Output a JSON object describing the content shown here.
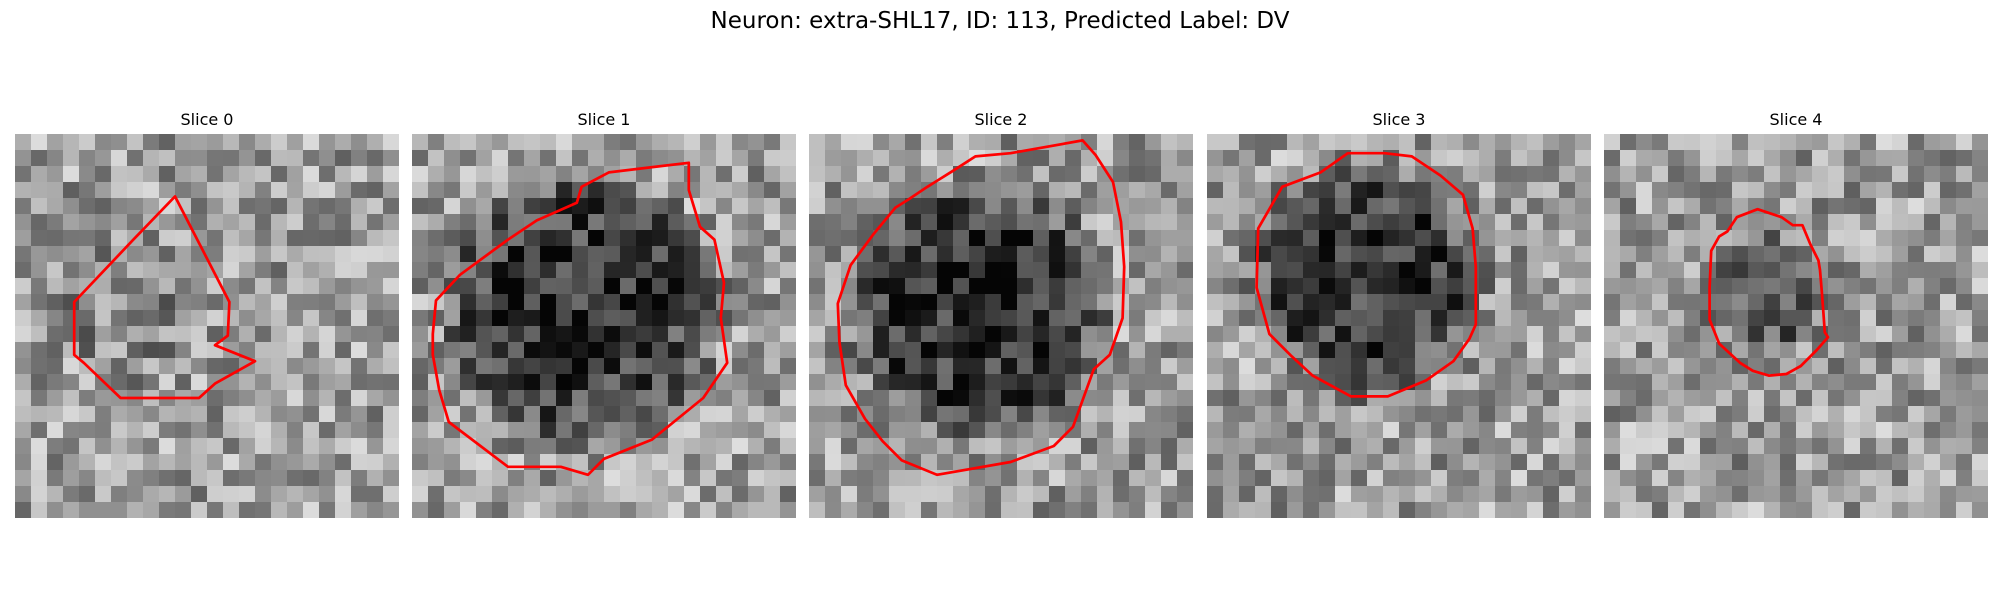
{
  "figure": {
    "title": "Neuron: extra-SHL17, ID: 113, Predicted Label: DV"
  },
  "style": {
    "contour_color": "#ff0000"
  },
  "slices": [
    {
      "title": "Slice 0",
      "contour": [
        [
          10,
          3.9
        ],
        [
          7.4,
          6.6
        ],
        [
          3.7,
          10.5
        ],
        [
          3.7,
          13.8
        ],
        [
          4.3,
          14.3
        ],
        [
          6.6,
          16.5
        ],
        [
          11.5,
          16.5
        ],
        [
          12.5,
          15.6
        ],
        [
          15,
          14.2
        ],
        [
          12.5,
          13.2
        ],
        [
          13.3,
          12.6
        ],
        [
          13.4,
          10.5
        ]
      ]
    },
    {
      "title": "Slice 1",
      "contour": [
        [
          17.3,
          1.8
        ],
        [
          17.3,
          3.5
        ],
        [
          18,
          5.8
        ],
        [
          18.9,
          6.6
        ],
        [
          19.5,
          9.3
        ],
        [
          19.3,
          11.5
        ],
        [
          19.7,
          14.3
        ],
        [
          18.2,
          16.5
        ],
        [
          15,
          19.1
        ],
        [
          12,
          20.3
        ],
        [
          11,
          21.3
        ],
        [
          9.3,
          20.8
        ],
        [
          6,
          20.8
        ],
        [
          2.3,
          18
        ],
        [
          1.7,
          16
        ],
        [
          1.3,
          13.8
        ],
        [
          1.3,
          12.5
        ],
        [
          1.5,
          10.4
        ],
        [
          3,
          8.8
        ],
        [
          6,
          6.6
        ],
        [
          7.8,
          5.4
        ],
        [
          10.3,
          4.3
        ],
        [
          10.6,
          3.3
        ],
        [
          12.3,
          2.4
        ]
      ]
    },
    {
      "title": "Slice 2",
      "contour": [
        [
          17.1,
          0.4
        ],
        [
          17.9,
          1.3
        ],
        [
          19,
          3
        ],
        [
          19.5,
          5.5
        ],
        [
          19.7,
          8.3
        ],
        [
          19.6,
          11.5
        ],
        [
          18.8,
          13.8
        ],
        [
          17.8,
          14.7
        ],
        [
          16.5,
          18.3
        ],
        [
          15.3,
          19.5
        ],
        [
          12.6,
          20.5
        ],
        [
          8,
          21.3
        ],
        [
          5.8,
          20.4
        ],
        [
          4.6,
          19.2
        ],
        [
          3.5,
          17.8
        ],
        [
          2.3,
          15.7
        ],
        [
          1.9,
          13
        ],
        [
          1.8,
          10.6
        ],
        [
          2.6,
          8.2
        ],
        [
          4,
          6.3
        ],
        [
          5.4,
          4.6
        ],
        [
          6.2,
          4.1
        ],
        [
          7.4,
          3.3
        ],
        [
          9,
          2.3
        ],
        [
          10.4,
          1.4
        ],
        [
          12.6,
          1.2
        ]
      ]
    },
    {
      "title": "Slice 3",
      "contour": [
        [
          11.1,
          1.2
        ],
        [
          8.8,
          1.2
        ],
        [
          7.1,
          2.4
        ],
        [
          4.7,
          3.3
        ],
        [
          3.2,
          5.9
        ],
        [
          3.1,
          9.6
        ],
        [
          3.9,
          12.5
        ],
        [
          5.3,
          13.9
        ],
        [
          6.6,
          15.1
        ],
        [
          9,
          16.4
        ],
        [
          11.3,
          16.4
        ],
        [
          13.7,
          15.4
        ],
        [
          15.4,
          14.2
        ],
        [
          16.4,
          12.8
        ],
        [
          16.8,
          11.9
        ],
        [
          16.8,
          8.3
        ],
        [
          16.6,
          5.9
        ],
        [
          16,
          3.8
        ],
        [
          14.6,
          2.6
        ],
        [
          12.8,
          1.4
        ]
      ]
    },
    {
      "title": "Slice 4",
      "contour": [
        [
          12.4,
          5.7
        ],
        [
          11.8,
          5.7
        ],
        [
          11.1,
          5.2
        ],
        [
          9.6,
          4.7
        ],
        [
          8.3,
          5.2
        ],
        [
          7.7,
          6.1
        ],
        [
          7.2,
          6.4
        ],
        [
          6.7,
          7.3
        ],
        [
          6.6,
          9.6
        ],
        [
          6.6,
          11.6
        ],
        [
          7.2,
          13.1
        ],
        [
          8.5,
          14.3
        ],
        [
          9.3,
          14.8
        ],
        [
          10.3,
          15.1
        ],
        [
          11.4,
          15
        ],
        [
          12.3,
          14.5
        ],
        [
          13.3,
          13.5
        ],
        [
          14,
          12.7
        ],
        [
          13.8,
          12.4
        ],
        [
          13.7,
          11
        ],
        [
          13.6,
          9.7
        ],
        [
          13.5,
          8.5
        ],
        [
          13.4,
          7.9
        ],
        [
          12.9,
          6.9
        ]
      ]
    }
  ]
}
